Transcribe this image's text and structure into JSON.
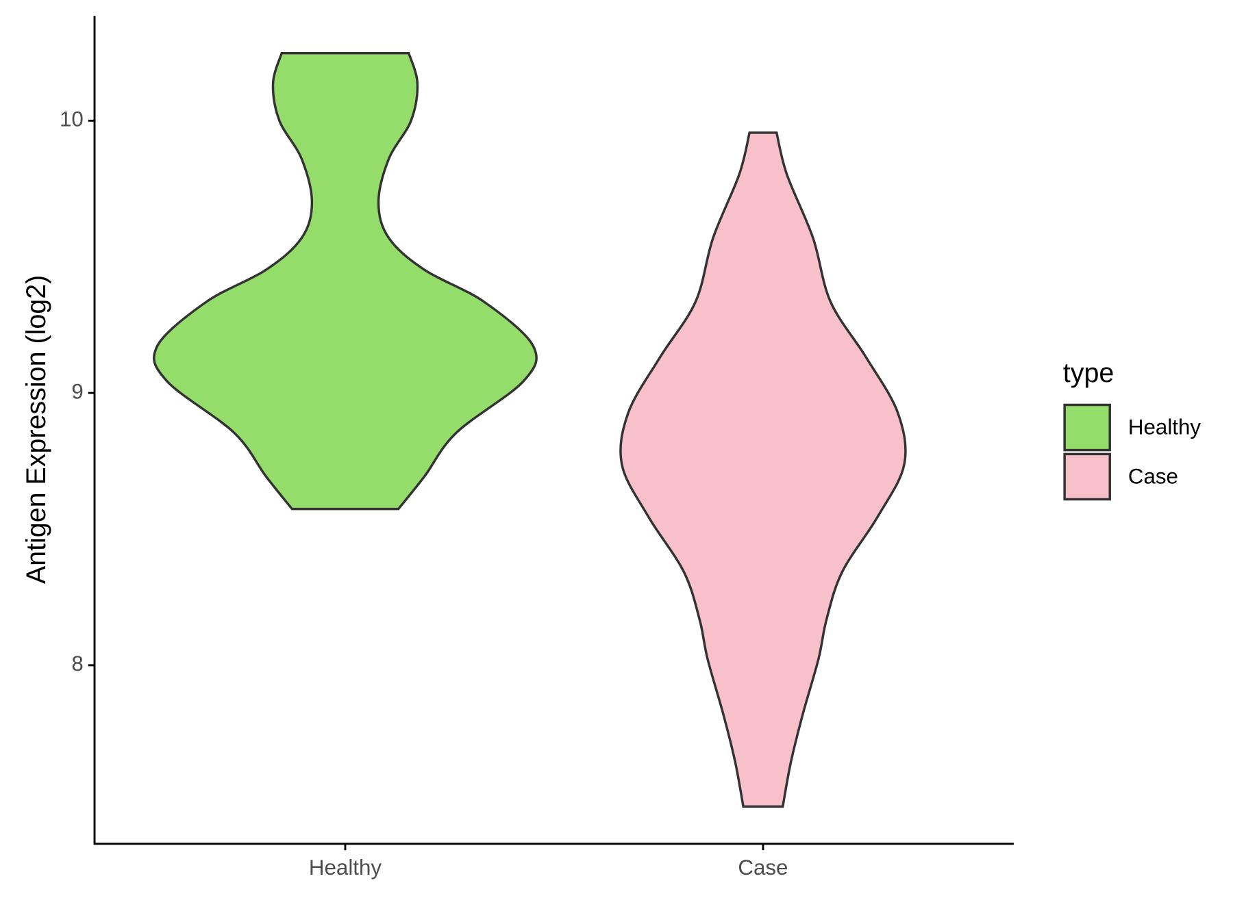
{
  "chart_data": {
    "type": "violin",
    "y_label": "Antigen Expression (log2)",
    "categories": [
      "Healthy",
      "Case"
    ],
    "legend_title": "type",
    "legend_position": "right",
    "series": [
      {
        "name": "Healthy",
        "color": "#94dd6b",
        "y": [
          10.248,
          10.137,
          10.0,
          9.86,
          9.7,
          9.569,
          9.452,
          9.335,
          9.172,
          9.044,
          8.854,
          8.694,
          8.574
        ],
        "density": [
          0.338,
          0.384,
          0.35,
          0.232,
          0.177,
          0.232,
          0.422,
          0.738,
          1.0,
          0.949,
          0.591,
          0.422,
          0.283
        ]
      },
      {
        "name": "Case",
        "color": "#f7c0cb",
        "y": [
          9.956,
          9.802,
          9.569,
          9.335,
          9.131,
          8.927,
          8.738,
          8.548,
          8.344,
          8.169,
          8.023,
          7.819,
          7.644,
          7.481
        ],
        "density": [
          0.072,
          0.127,
          0.266,
          0.359,
          0.548,
          0.717,
          0.751,
          0.612,
          0.422,
          0.338,
          0.295,
          0.211,
          0.148,
          0.105
        ]
      }
    ],
    "ylim": [
      7.344,
      10.385
    ],
    "yticks": [
      8,
      9,
      10
    ],
    "grid": false
  }
}
